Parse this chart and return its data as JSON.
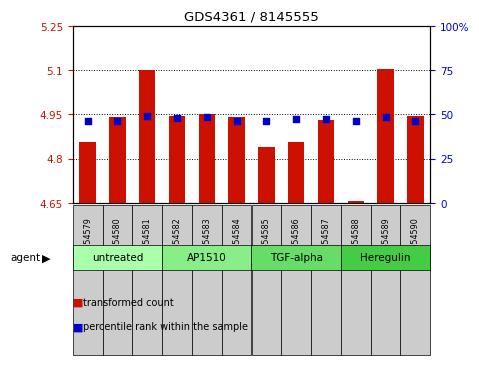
{
  "title": "GDS4361 / 8145555",
  "samples": [
    "GSM554579",
    "GSM554580",
    "GSM554581",
    "GSM554582",
    "GSM554583",
    "GSM554584",
    "GSM554585",
    "GSM554586",
    "GSM554587",
    "GSM554588",
    "GSM554589",
    "GSM554590"
  ],
  "red_values": [
    4.855,
    4.94,
    5.1,
    4.945,
    4.95,
    4.94,
    4.84,
    4.855,
    4.93,
    4.655,
    5.105,
    4.945
  ],
  "blue_values": [
    4.926,
    4.928,
    4.944,
    4.936,
    4.94,
    4.928,
    4.928,
    4.933,
    4.935,
    4.928,
    4.94,
    4.928
  ],
  "ymin": 4.65,
  "ymax": 5.25,
  "yticks": [
    4.65,
    4.8,
    4.95,
    5.1,
    5.25
  ],
  "ytick_labels": [
    "4.65",
    "4.8",
    "4.95",
    "5.1",
    "5.25"
  ],
  "y2ticks": [
    0,
    25,
    50,
    75,
    100
  ],
  "y2tick_labels": [
    "0",
    "25",
    "50",
    "75",
    "100%"
  ],
  "groups": [
    {
      "label": "untreated",
      "start": 0,
      "end": 3,
      "color": "#aaffaa"
    },
    {
      "label": "AP1510",
      "start": 3,
      "end": 6,
      "color": "#88ee88"
    },
    {
      "label": "TGF-alpha",
      "start": 6,
      "end": 9,
      "color": "#66dd66"
    },
    {
      "label": "Heregulin",
      "start": 9,
      "end": 12,
      "color": "#44cc44"
    }
  ],
  "bar_color": "#cc1100",
  "dot_color": "#0000cc",
  "bar_bottom": 4.65,
  "dot_size": 18,
  "bar_width": 0.55,
  "y_label_color": "#cc1100",
  "y2_label_color": "#0000cc",
  "agent_label": "agent",
  "legend_red": "transformed count",
  "legend_blue": "percentile rank within the sample"
}
